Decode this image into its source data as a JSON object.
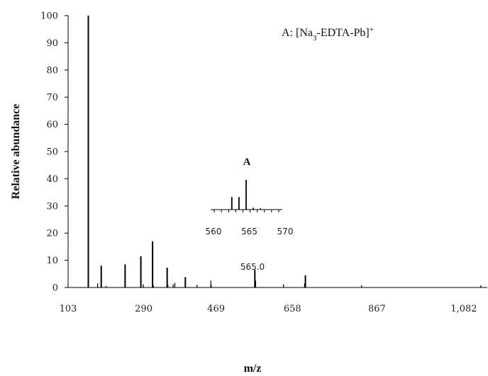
{
  "chart_data": {
    "type": "bar",
    "title": "",
    "xlabel": "m/z",
    "ylabel": "Relative abundance",
    "ylim": [
      0,
      100
    ],
    "yticks": [
      0,
      10,
      20,
      30,
      40,
      50,
      60,
      70,
      80,
      90,
      100
    ],
    "xlim": [
      103,
      1140
    ],
    "xticks": [
      103,
      290,
      469,
      658,
      867,
      1082
    ],
    "xtick_labels": [
      "103",
      "290",
      "469",
      "658",
      "867",
      "1,082"
    ],
    "grid": false,
    "legend_text": "A: [Na3-EDTA-Pb]+",
    "peak_label": "565.0",
    "peaks": [
      {
        "x": 153,
        "y": 100
      },
      {
        "x": 176,
        "y": 1.5
      },
      {
        "x": 185,
        "y": 8
      },
      {
        "x": 197,
        "y": 0.6
      },
      {
        "x": 244,
        "y": 8.5
      },
      {
        "x": 283,
        "y": 11.5
      },
      {
        "x": 289,
        "y": 1.2
      },
      {
        "x": 312,
        "y": 17
      },
      {
        "x": 314,
        "y": 0.8
      },
      {
        "x": 348,
        "y": 7.3
      },
      {
        "x": 350,
        "y": 1.0
      },
      {
        "x": 363,
        "y": 1.2
      },
      {
        "x": 367,
        "y": 1.7
      },
      {
        "x": 393,
        "y": 3.8
      },
      {
        "x": 422,
        "y": 1.0
      },
      {
        "x": 456,
        "y": 2.5
      },
      {
        "x": 457,
        "y": 1.0
      },
      {
        "x": 565,
        "y": 6.5
      },
      {
        "x": 567,
        "y": 2.5
      },
      {
        "x": 636,
        "y": 1.2
      },
      {
        "x": 688,
        "y": 1.5
      },
      {
        "x": 690,
        "y": 4.5
      },
      {
        "x": 829,
        "y": 0.8
      },
      {
        "x": 1124,
        "y": 0.8
      }
    ],
    "inset": {
      "label": "A",
      "x_range": [
        560,
        570
      ],
      "xtick_labels": [
        "560",
        "565",
        "570"
      ],
      "peaks": [
        {
          "x": 563,
          "y": 0.42
        },
        {
          "x": 564,
          "y": 0.42
        },
        {
          "x": 565,
          "y": 1.0
        },
        {
          "x": 566,
          "y": 0.06
        },
        {
          "x": 567,
          "y": 0.04
        }
      ]
    }
  }
}
